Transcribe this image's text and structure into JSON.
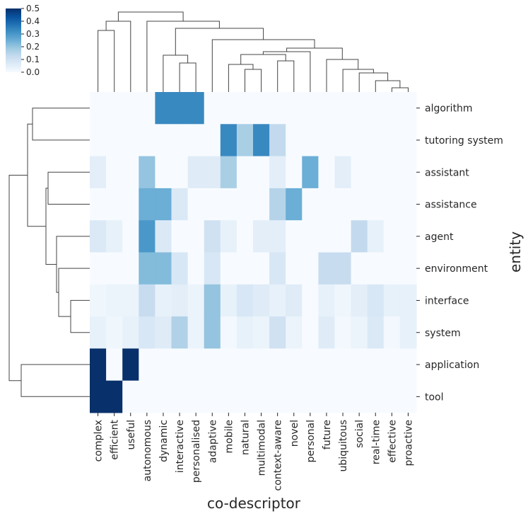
{
  "chart_data": {
    "type": "heatmap",
    "title": "",
    "xlabel": "co-descriptor",
    "ylabel": "entity",
    "columns": [
      "complex",
      "efficient",
      "useful",
      "autonomous",
      "dynamic",
      "interactive",
      "personalised",
      "adaptive",
      "mobile",
      "natural",
      "multimodal",
      "context-aware",
      "novel",
      "personal",
      "future",
      "ubiquitous",
      "social",
      "real-time",
      "effective",
      "proactive"
    ],
    "rows": [
      "algorithm",
      "tutoring system",
      "assistant",
      "assistance",
      "agent",
      "environment",
      "interface",
      "system",
      "application",
      "tool"
    ],
    "values": [
      [
        0,
        0,
        0,
        0,
        0.33,
        0.33,
        0.33,
        0,
        0,
        0,
        0,
        0,
        0,
        0,
        0,
        0,
        0,
        0,
        0,
        0
      ],
      [
        0,
        0,
        0,
        0,
        0,
        0,
        0,
        0,
        0.33,
        0.17,
        0.33,
        0.13,
        0,
        0,
        0,
        0,
        0,
        0,
        0,
        0
      ],
      [
        0.05,
        0,
        0,
        0.2,
        0,
        0,
        0.06,
        0.06,
        0.17,
        0,
        0,
        0.05,
        0,
        0.25,
        0,
        0.05,
        0,
        0,
        0,
        0
      ],
      [
        0,
        0,
        0,
        0.25,
        0.25,
        0.07,
        0,
        0,
        0,
        0,
        0,
        0.15,
        0.25,
        0,
        0,
        0,
        0,
        0,
        0,
        0
      ],
      [
        0.07,
        0.04,
        0,
        0.3,
        0.07,
        0,
        0,
        0.1,
        0.04,
        0,
        0.05,
        0.05,
        0,
        0,
        0,
        0,
        0.13,
        0.04,
        0,
        0
      ],
      [
        0,
        0,
        0,
        0.22,
        0.22,
        0.08,
        0,
        0.08,
        0,
        0,
        0,
        0.08,
        0,
        0,
        0.12,
        0.12,
        0,
        0,
        0,
        0
      ],
      [
        0.02,
        0.03,
        0.03,
        0.12,
        0.04,
        0.05,
        0.03,
        0.2,
        0.04,
        0.08,
        0.06,
        0.04,
        0.06,
        0,
        0.04,
        0.02,
        0.05,
        0.08,
        0.04,
        0.04
      ],
      [
        0.04,
        0.02,
        0.04,
        0.08,
        0.06,
        0.16,
        0.03,
        0.2,
        0.01,
        0.04,
        0.03,
        0.1,
        0.03,
        0,
        0.06,
        0.01,
        0.03,
        0.07,
        0.01,
        0.04
      ],
      [
        0.5,
        0,
        0.5,
        0,
        0,
        0,
        0,
        0,
        0,
        0,
        0,
        0,
        0,
        0,
        0,
        0,
        0,
        0,
        0,
        0
      ],
      [
        0.5,
        0.5,
        0,
        0,
        0,
        0,
        0,
        0,
        0,
        0,
        0,
        0,
        0,
        0,
        0,
        0,
        0,
        0,
        0,
        0
      ]
    ],
    "colorbar": {
      "min": 0.0,
      "max": 0.5,
      "ticks": [
        "0.0",
        "0.1",
        "0.2",
        "0.3",
        "0.4",
        "0.5"
      ],
      "colormap": "Blues",
      "low_color": "#f7fbff",
      "high_color": "#08306b"
    },
    "dendrograms": [
      "columns",
      "rows"
    ]
  }
}
